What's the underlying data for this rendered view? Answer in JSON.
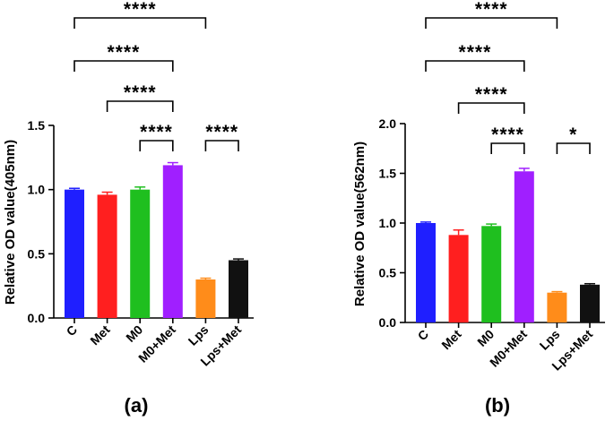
{
  "chart_data": [
    {
      "type": "bar",
      "panel_label": "(a)",
      "ylabel": "Relative OD value(405nm)",
      "xlabel": "",
      "ylim": [
        0,
        1.5
      ],
      "yticks": [
        "0.0",
        "0.5",
        "1.0",
        "1.5"
      ],
      "categories": [
        "C",
        "Met",
        "M0",
        "M0+Met",
        "Lps",
        "Lps+Met"
      ],
      "values": [
        1.0,
        0.96,
        1.0,
        1.19,
        0.3,
        0.45
      ],
      "errors": [
        0.01,
        0.02,
        0.02,
        0.02,
        0.01,
        0.01
      ],
      "colors": [
        "#1f1fff",
        "#ff1f1f",
        "#1fbf1f",
        "#a01fff",
        "#ff8c1a",
        "#111111"
      ],
      "significance": [
        {
          "from": 0,
          "to": 4,
          "label": "****"
        },
        {
          "from": 0,
          "to": 3,
          "label": "****"
        },
        {
          "from": 1,
          "to": 3,
          "label": "****"
        },
        {
          "from": 2,
          "to": 3,
          "label": "****"
        },
        {
          "from": 4,
          "to": 5,
          "label": "****"
        }
      ]
    },
    {
      "type": "bar",
      "panel_label": "(b)",
      "ylabel": "Relative OD value(562nm)",
      "xlabel": "",
      "ylim": [
        0,
        2.0
      ],
      "yticks": [
        "0.0",
        "0.5",
        "1.0",
        "1.5",
        "2.0"
      ],
      "categories": [
        "C",
        "Met",
        "M0",
        "M0+Met",
        "Lps",
        "Lps+Met"
      ],
      "values": [
        1.0,
        0.88,
        0.97,
        1.52,
        0.3,
        0.38
      ],
      "errors": [
        0.01,
        0.05,
        0.02,
        0.03,
        0.01,
        0.01
      ],
      "colors": [
        "#1f1fff",
        "#ff1f1f",
        "#1fbf1f",
        "#a01fff",
        "#ff8c1a",
        "#111111"
      ],
      "significance": [
        {
          "from": 0,
          "to": 4,
          "label": "****"
        },
        {
          "from": 0,
          "to": 3,
          "label": "****"
        },
        {
          "from": 1,
          "to": 3,
          "label": "****"
        },
        {
          "from": 2,
          "to": 3,
          "label": "****"
        },
        {
          "from": 4,
          "to": 5,
          "label": "*"
        }
      ]
    }
  ]
}
